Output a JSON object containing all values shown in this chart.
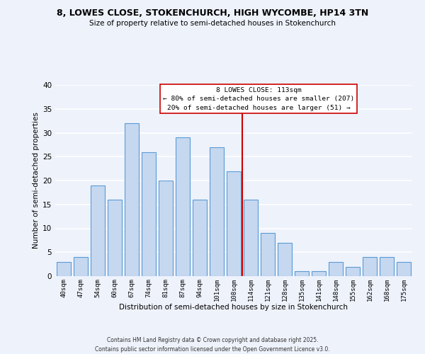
{
  "title1": "8, LOWES CLOSE, STOKENCHURCH, HIGH WYCOMBE, HP14 3TN",
  "title2": "Size of property relative to semi-detached houses in Stokenchurch",
  "xlabel": "Distribution of semi-detached houses by size in Stokenchurch",
  "ylabel": "Number of semi-detached properties",
  "categories": [
    "40sqm",
    "47sqm",
    "54sqm",
    "60sqm",
    "67sqm",
    "74sqm",
    "81sqm",
    "87sqm",
    "94sqm",
    "101sqm",
    "108sqm",
    "114sqm",
    "121sqm",
    "128sqm",
    "135sqm",
    "141sqm",
    "148sqm",
    "155sqm",
    "162sqm",
    "168sqm",
    "175sqm"
  ],
  "values": [
    3,
    4,
    19,
    16,
    32,
    26,
    20,
    29,
    16,
    27,
    22,
    16,
    9,
    7,
    1,
    1,
    3,
    2,
    4,
    4,
    3
  ],
  "bar_color": "#c5d8f0",
  "bar_edge_color": "#5b9bd5",
  "highlight_index": 11,
  "annotation_title": "8 LOWES CLOSE: 113sqm",
  "annotation_line1": "← 80% of semi-detached houses are smaller (207)",
  "annotation_line2": "20% of semi-detached houses are larger (51) →",
  "property_line_color": "#cc0000",
  "ylim": [
    0,
    40
  ],
  "yticks": [
    0,
    5,
    10,
    15,
    20,
    25,
    30,
    35,
    40
  ],
  "background_color": "#eef2fb",
  "grid_color": "#ffffff",
  "footer1": "Contains HM Land Registry data © Crown copyright and database right 2025.",
  "footer2": "Contains public sector information licensed under the Open Government Licence v3.0."
}
